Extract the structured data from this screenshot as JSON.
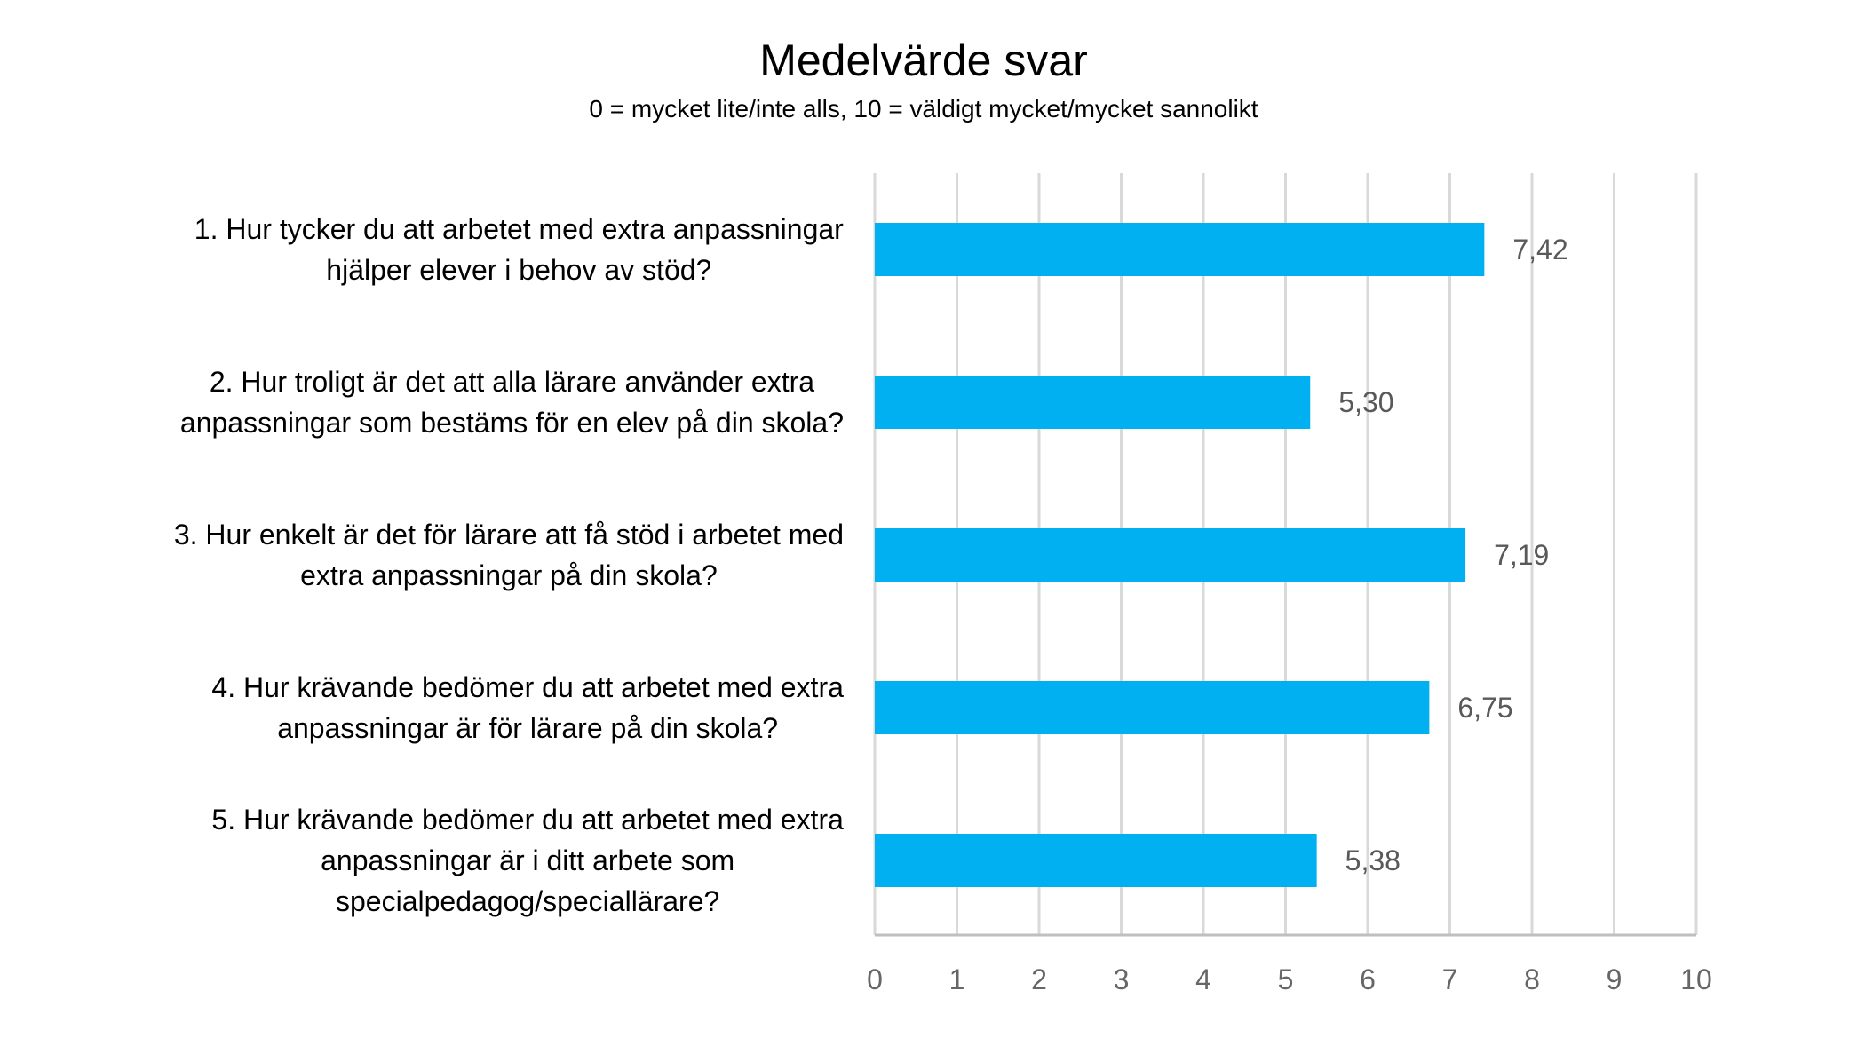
{
  "chart_data": {
    "type": "bar",
    "orientation": "horizontal",
    "title": "Medelvärde svar",
    "subtitle": "0 = mycket lite/inte alls, 10 = väldigt mycket/mycket sannolikt",
    "categories": [
      [
        "1. Hur tycker du att arbetet med extra anpassningar",
        "hjälper elever i behov av stöd?"
      ],
      [
        "2. Hur troligt är det att alla lärare använder extra",
        "anpassningar som bestäms för en elev på din skola?"
      ],
      [
        "3. Hur enkelt är det för lärare att få stöd i arbetet med",
        "extra anpassningar på din skola?"
      ],
      [
        "4. Hur krävande bedömer du att arbetet med extra",
        "anpassningar är för lärare på din skola?"
      ],
      [
        "5. Hur krävande bedömer du att arbetet med extra",
        "anpassningar är i ditt arbete som",
        "specialpedagog/speciallärare?"
      ]
    ],
    "values": [
      7.42,
      5.3,
      7.19,
      6.75,
      5.38
    ],
    "value_labels": [
      "7,42",
      "5,30",
      "7,19",
      "6,75",
      "5,38"
    ],
    "xlim": [
      0,
      10
    ],
    "x_ticks": [
      "0",
      "1",
      "2",
      "3",
      "4",
      "5",
      "6",
      "7",
      "8",
      "9",
      "10"
    ],
    "grid": true,
    "legend": "none",
    "colors": {
      "bar": "#00B0F0",
      "grid": "#D9D9D9",
      "axis": "#BFBFBF",
      "tick_text": "#666666",
      "data_label_text": "#595959"
    }
  }
}
